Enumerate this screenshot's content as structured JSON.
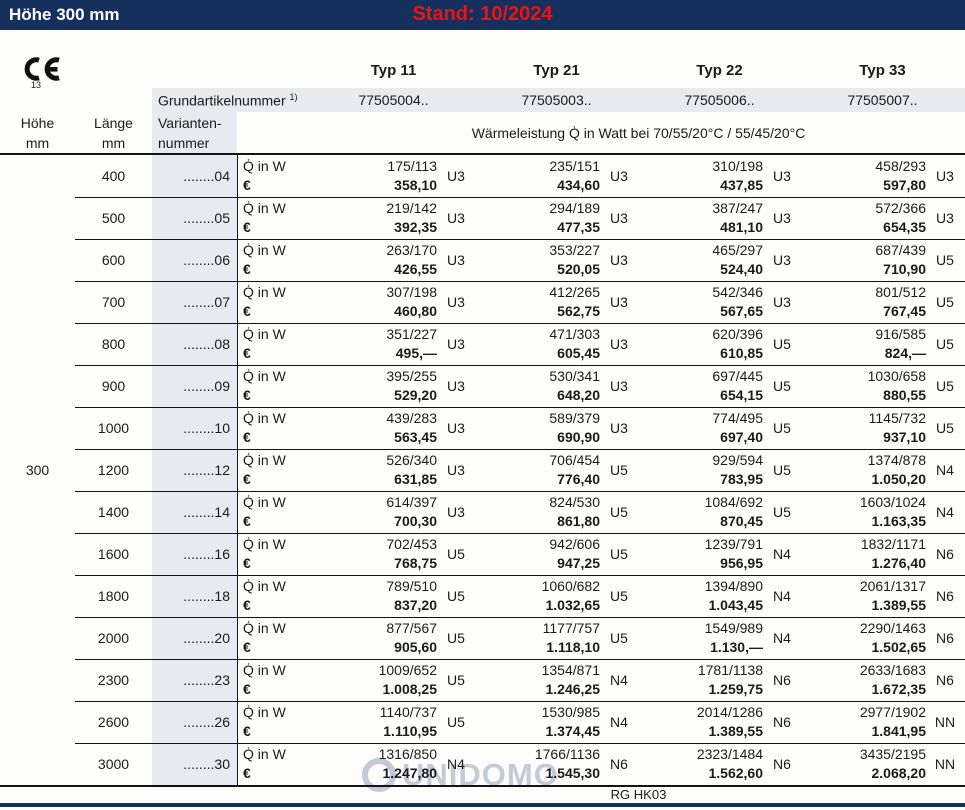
{
  "topbar": {
    "title": "Höhe 300 mm",
    "stand": "Stand: 10/2024"
  },
  "ce_mark": {
    "number": "13"
  },
  "table_header": {
    "hoehe_line1": "Höhe",
    "hoehe_line2": "mm",
    "laenge_line1": "Länge",
    "laenge_line2": "mm",
    "varianten_line1": "Varianten-",
    "varianten_line2": "nummer",
    "grundartikel_label": "Grundartikelnummer",
    "grundartikel_sup": "1)",
    "waermeleistung": "Wärmeleistung Q̇ in Watt bei 70/55/20°C / 55/45/20°C"
  },
  "types": [
    {
      "label": "Typ 11",
      "artikelnummer": "77505004.."
    },
    {
      "label": "Typ 21",
      "artikelnummer": "77505003.."
    },
    {
      "label": "Typ 22",
      "artikelnummer": "77505006.."
    },
    {
      "label": "Typ 33",
      "artikelnummer": "77505007.."
    }
  ],
  "labels": {
    "watt": "Q̇ in W",
    "euro": "€"
  },
  "hoehe_value": "300",
  "rows": [
    {
      "laenge": "400",
      "variante": "........04",
      "cells": [
        {
          "watt": "175/113",
          "price": "358,10",
          "badge": "U3"
        },
        {
          "watt": "235/151",
          "price": "434,60",
          "badge": "U3"
        },
        {
          "watt": "310/198",
          "price": "437,85",
          "badge": "U3"
        },
        {
          "watt": "458/293",
          "price": "597,80",
          "badge": "U3"
        }
      ]
    },
    {
      "laenge": "500",
      "variante": "........05",
      "cells": [
        {
          "watt": "219/142",
          "price": "392,35",
          "badge": "U3"
        },
        {
          "watt": "294/189",
          "price": "477,35",
          "badge": "U3"
        },
        {
          "watt": "387/247",
          "price": "481,10",
          "badge": "U3"
        },
        {
          "watt": "572/366",
          "price": "654,35",
          "badge": "U3"
        }
      ]
    },
    {
      "laenge": "600",
      "variante": "........06",
      "cells": [
        {
          "watt": "263/170",
          "price": "426,55",
          "badge": "U3"
        },
        {
          "watt": "353/227",
          "price": "520,05",
          "badge": "U3"
        },
        {
          "watt": "465/297",
          "price": "524,40",
          "badge": "U3"
        },
        {
          "watt": "687/439",
          "price": "710,90",
          "badge": "U5"
        }
      ]
    },
    {
      "laenge": "700",
      "variante": "........07",
      "cells": [
        {
          "watt": "307/198",
          "price": "460,80",
          "badge": "U3"
        },
        {
          "watt": "412/265",
          "price": "562,75",
          "badge": "U3"
        },
        {
          "watt": "542/346",
          "price": "567,65",
          "badge": "U3"
        },
        {
          "watt": "801/512",
          "price": "767,45",
          "badge": "U5"
        }
      ]
    },
    {
      "laenge": "800",
      "variante": "........08",
      "cells": [
        {
          "watt": "351/227",
          "price": "495,—",
          "badge": "U3"
        },
        {
          "watt": "471/303",
          "price": "605,45",
          "badge": "U3"
        },
        {
          "watt": "620/396",
          "price": "610,85",
          "badge": "U5"
        },
        {
          "watt": "916/585",
          "price": "824,—",
          "badge": "U5"
        }
      ]
    },
    {
      "laenge": "900",
      "variante": "........09",
      "cells": [
        {
          "watt": "395/255",
          "price": "529,20",
          "badge": "U3"
        },
        {
          "watt": "530/341",
          "price": "648,20",
          "badge": "U3"
        },
        {
          "watt": "697/445",
          "price": "654,15",
          "badge": "U5"
        },
        {
          "watt": "1030/658",
          "price": "880,55",
          "badge": "U5"
        }
      ]
    },
    {
      "laenge": "1000",
      "variante": "........10",
      "cells": [
        {
          "watt": "439/283",
          "price": "563,45",
          "badge": "U3"
        },
        {
          "watt": "589/379",
          "price": "690,90",
          "badge": "U3"
        },
        {
          "watt": "774/495",
          "price": "697,40",
          "badge": "U5"
        },
        {
          "watt": "1145/732",
          "price": "937,10",
          "badge": "U5"
        }
      ]
    },
    {
      "laenge": "1200",
      "variante": "........12",
      "cells": [
        {
          "watt": "526/340",
          "price": "631,85",
          "badge": "U3"
        },
        {
          "watt": "706/454",
          "price": "776,40",
          "badge": "U5"
        },
        {
          "watt": "929/594",
          "price": "783,95",
          "badge": "U5"
        },
        {
          "watt": "1374/878",
          "price": "1.050,20",
          "badge": "N4"
        }
      ]
    },
    {
      "laenge": "1400",
      "variante": "........14",
      "cells": [
        {
          "watt": "614/397",
          "price": "700,30",
          "badge": "U3"
        },
        {
          "watt": "824/530",
          "price": "861,80",
          "badge": "U5"
        },
        {
          "watt": "1084/692",
          "price": "870,45",
          "badge": "U5"
        },
        {
          "watt": "1603/1024",
          "price": "1.163,35",
          "badge": "N4"
        }
      ]
    },
    {
      "laenge": "1600",
      "variante": "........16",
      "cells": [
        {
          "watt": "702/453",
          "price": "768,75",
          "badge": "U5"
        },
        {
          "watt": "942/606",
          "price": "947,25",
          "badge": "U5"
        },
        {
          "watt": "1239/791",
          "price": "956,95",
          "badge": "N4"
        },
        {
          "watt": "1832/1171",
          "price": "1.276,40",
          "badge": "N6"
        }
      ]
    },
    {
      "laenge": "1800",
      "variante": "........18",
      "cells": [
        {
          "watt": "789/510",
          "price": "837,20",
          "badge": "U5"
        },
        {
          "watt": "1060/682",
          "price": "1.032,65",
          "badge": "U5"
        },
        {
          "watt": "1394/890",
          "price": "1.043,45",
          "badge": "N4"
        },
        {
          "watt": "2061/1317",
          "price": "1.389,55",
          "badge": "N6"
        }
      ]
    },
    {
      "laenge": "2000",
      "variante": "........20",
      "cells": [
        {
          "watt": "877/567",
          "price": "905,60",
          "badge": "U5"
        },
        {
          "watt": "1177/757",
          "price": "1.118,10",
          "badge": "U5"
        },
        {
          "watt": "1549/989",
          "price": "1.130,—",
          "badge": "N4"
        },
        {
          "watt": "2290/1463",
          "price": "1.502,65",
          "badge": "N6"
        }
      ]
    },
    {
      "laenge": "2300",
      "variante": "........23",
      "cells": [
        {
          "watt": "1009/652",
          "price": "1.008,25",
          "badge": "U5"
        },
        {
          "watt": "1354/871",
          "price": "1.246,25",
          "badge": "N4"
        },
        {
          "watt": "1781/1138",
          "price": "1.259,75",
          "badge": "N6"
        },
        {
          "watt": "2633/1683",
          "price": "1.672,35",
          "badge": "N6"
        }
      ]
    },
    {
      "laenge": "2600",
      "variante": "........26",
      "cells": [
        {
          "watt": "1140/737",
          "price": "1.110,95",
          "badge": "U5"
        },
        {
          "watt": "1530/985",
          "price": "1.374,45",
          "badge": "N4"
        },
        {
          "watt": "2014/1286",
          "price": "1.389,55",
          "badge": "N6"
        },
        {
          "watt": "2977/1902",
          "price": "1.841,95",
          "badge": "NN"
        }
      ]
    },
    {
      "laenge": "3000",
      "variante": "........30",
      "cells": [
        {
          "watt": "1316/850",
          "price": "1.247,80",
          "badge": "N4"
        },
        {
          "watt": "1766/1136",
          "price": "1.545,30",
          "badge": "N6"
        },
        {
          "watt": "2323/1484",
          "price": "1.562,60",
          "badge": "N6"
        },
        {
          "watt": "3435/2195",
          "price": "2.068,20",
          "badge": "NN"
        }
      ]
    }
  ],
  "footer": {
    "code": "RG HK03"
  },
  "watermark": {
    "text": "UNIDOMO"
  },
  "colors": {
    "navy": "#15305d",
    "red": "#ee1212",
    "gray_bg": "#e9e9f0"
  }
}
